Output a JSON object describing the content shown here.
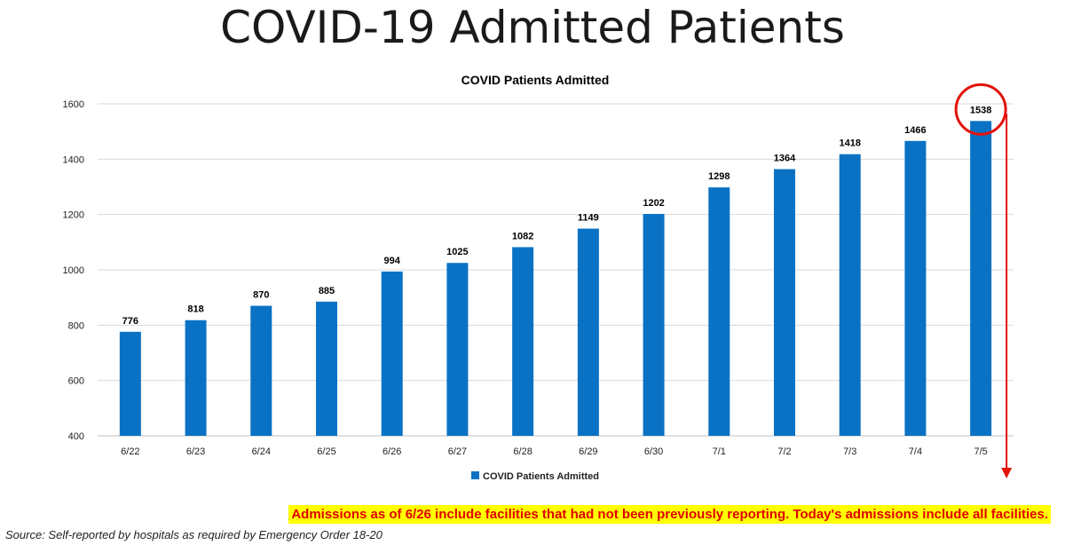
{
  "page": {
    "title": "COVID-19 Admitted Patients",
    "note": "Admissions as of 6/26 include facilities that had not been previously reporting. Today's admissions include all facilities.",
    "source": "Source: Self-reported by hospitals as required by Emergency Order 18-20"
  },
  "colors": {
    "bar": "#0a72c4",
    "highlight": "#e3120b",
    "note_bg": "#ffff00",
    "note_text": "#e00000"
  },
  "chart_data": {
    "type": "bar",
    "title": "COVID Patients Admitted",
    "categories": [
      "6/22",
      "6/23",
      "6/24",
      "6/25",
      "6/26",
      "6/27",
      "6/28",
      "6/29",
      "6/30",
      "7/1",
      "7/2",
      "7/3",
      "7/4",
      "7/5"
    ],
    "series": [
      {
        "name": "COVID Patients Admitted",
        "values": [
          776,
          818,
          870,
          885,
          994,
          1025,
          1082,
          1149,
          1202,
          1298,
          1364,
          1418,
          1466,
          1538
        ]
      }
    ],
    "ylim": [
      400,
      1600
    ],
    "yticks": [
      400,
      600,
      800,
      1000,
      1200,
      1400,
      1600
    ],
    "grid": true,
    "legend": "bottom-center",
    "data_labels": true,
    "highlight_category": "7/5"
  }
}
